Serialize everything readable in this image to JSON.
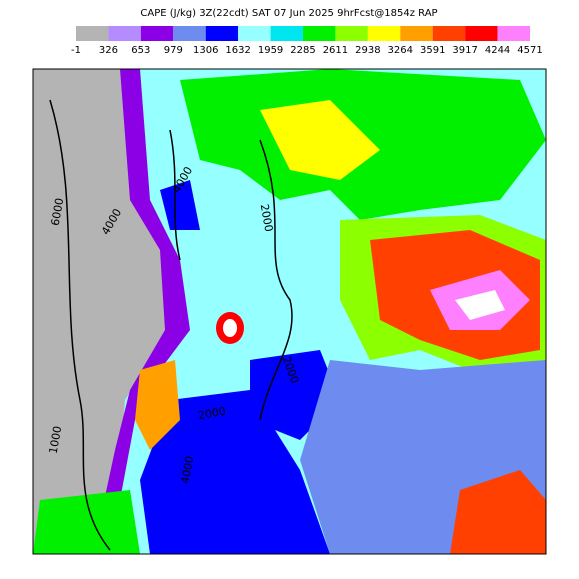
{
  "header": {
    "title": "CAPE (J/kg) 3Z(22cdt) SAT 07 Jun 2025 9hrFcst@1854z RAP"
  },
  "colorbar": {
    "colors": [
      "#b4b4b4",
      "#b48cff",
      "#8c00e6",
      "#6e8cf0",
      "#0000ff",
      "#96ffff",
      "#00e6f0",
      "#00f000",
      "#8cff00",
      "#ffff00",
      "#ffa000",
      "#ff4000",
      "#ff0000",
      "#ff80ff"
    ],
    "labels": [
      "-1",
      "326",
      "653",
      "979",
      "1306",
      "1632",
      "1959",
      "2285",
      "2611",
      "2938",
      "3264",
      "3591",
      "3917",
      "4244",
      "4571"
    ]
  },
  "contour_labels": [
    "6000",
    "4000",
    "4000",
    "2000",
    "2000",
    "2000",
    "1000",
    "4000"
  ]
}
